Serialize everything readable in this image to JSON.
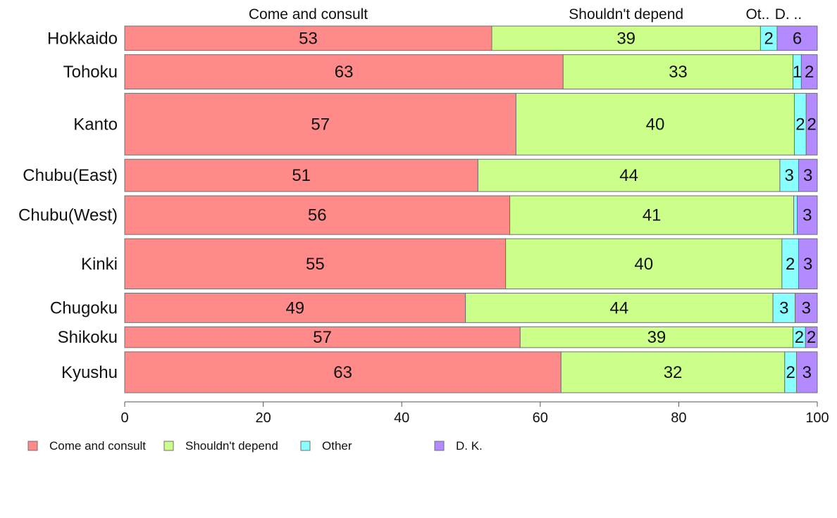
{
  "chart_data": {
    "type": "bar",
    "orientation": "horizontal",
    "stacked": true,
    "percent": true,
    "categories": [
      "Hokkaido",
      "Tohoku",
      "Kanto",
      "Chubu(East)",
      "Chubu(West)",
      "Kinki",
      "Chugoku",
      "Shikoku",
      "Kyushu"
    ],
    "category_weights": [
      34,
      48,
      86,
      45,
      54,
      70,
      41,
      29,
      57
    ],
    "series": [
      {
        "name": "Come and consult",
        "color": "#ff8a8a",
        "values": [
          53.0,
          63.3,
          56.5,
          51.0,
          55.6,
          55.0,
          49.2,
          57.1,
          63.0
        ],
        "labels": [
          "53",
          "63",
          "57",
          "51",
          "56",
          "55",
          "49",
          "57",
          "63"
        ]
      },
      {
        "name": "Shouldn't depend",
        "color": "#ccff8a",
        "values": [
          38.8,
          33.2,
          40.2,
          43.6,
          41.0,
          39.9,
          44.4,
          39.4,
          32.3
        ],
        "labels": [
          "39",
          "33",
          "40",
          "44",
          "41",
          "40",
          "44",
          "39",
          "32"
        ]
      },
      {
        "name": "Other",
        "color": "#8affff",
        "values": [
          2.4,
          1.2,
          1.7,
          2.7,
          0.5,
          2.4,
          3.2,
          1.8,
          1.7
        ],
        "labels": [
          "2",
          "1",
          "2",
          "3",
          "",
          "2",
          "3",
          "2",
          "2"
        ]
      },
      {
        "name": "D. K.",
        "color": "#b38aff",
        "values": [
          5.8,
          2.3,
          1.6,
          2.7,
          2.9,
          2.7,
          3.2,
          1.7,
          3.0
        ],
        "labels": [
          "6",
          "2",
          "2",
          "3",
          "3",
          "3",
          "3",
          "2",
          "3"
        ]
      }
    ],
    "top_labels": [
      "Come and consult",
      "Shouldn't depend",
      "Ot..",
      "D. .."
    ],
    "xlim": [
      0,
      100
    ],
    "xticks": [
      0,
      20,
      40,
      60,
      80,
      100
    ],
    "grid": false,
    "legend": {
      "position": "bottom-left",
      "items": [
        "Come and consult",
        "Shouldn't depend",
        "Other",
        "D. K."
      ]
    }
  }
}
